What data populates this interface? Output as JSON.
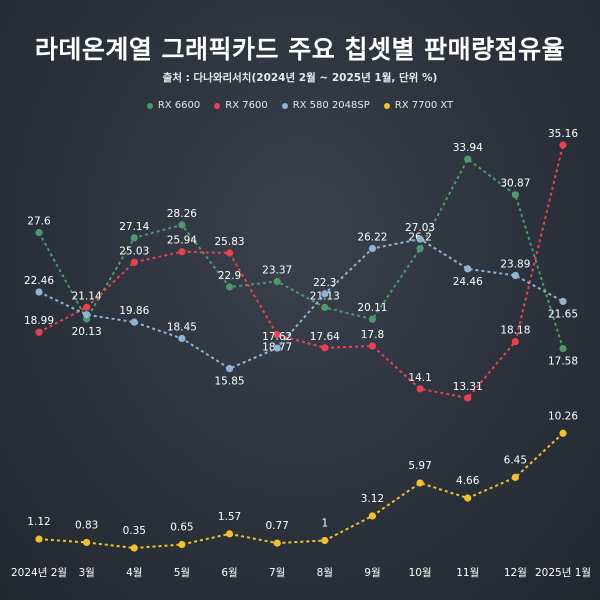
{
  "title": "라데온계열 그래픽카드 주요 칩셋별 판매량점유율",
  "subtitle": "출처 : 다나와리서치(2024년 2월 ~ 2025년 1월, 단위 %)",
  "chart_data": {
    "type": "line",
    "title": "라데온계열 그래픽카드 주요 칩셋별 판매량점유율",
    "subtitle": "출처 : 다나와리서치(2024년 2월 ~ 2025년 1월, 단위 %)",
    "categories": [
      "2024년 2월",
      "3월",
      "4월",
      "5월",
      "6월",
      "7월",
      "8월",
      "9월",
      "10월",
      "11월",
      "12월",
      "2025년 1월"
    ],
    "legend_position": "top",
    "grid": false,
    "series": [
      {
        "name": "RX 6600",
        "color": "#4c9a6a",
        "values": [
          27.6,
          20.13,
          27.14,
          28.26,
          22.9,
          23.37,
          21.13,
          20.11,
          26.2,
          33.94,
          30.87,
          17.58
        ],
        "labels": [
          "27.6",
          "20.13",
          "27.14",
          "28.26",
          "22.9",
          "23.37",
          "21.13",
          "20.11",
          "26.2",
          "33.94",
          "30.87",
          "17.58"
        ]
      },
      {
        "name": "RX 7600",
        "color": "#e8414f",
        "values": [
          18.99,
          21.14,
          25.03,
          25.94,
          25.83,
          18.77,
          17.64,
          17.8,
          14.1,
          13.31,
          18.18,
          35.16
        ],
        "labels": [
          "18.99",
          "21.14",
          "25.03",
          "25.94",
          "25.83",
          "18.77",
          "17.64",
          "17.8",
          "14.1",
          "13.31",
          "18.18",
          "35.16"
        ]
      },
      {
        "name": "RX 580 2048SP",
        "color": "#8fb4d6",
        "values": [
          22.46,
          20.5,
          19.86,
          18.45,
          15.85,
          17.62,
          22.3,
          26.22,
          27.03,
          24.46,
          23.89,
          21.65
        ],
        "labels": [
          "22.46",
          "",
          "19.86",
          "18.45",
          "15.85",
          "17.62",
          "22.3",
          "26.22",
          "27.03",
          "24.46",
          "23.89",
          "21.65"
        ]
      },
      {
        "name": "RX 7700 XT",
        "color": "#f2c12e",
        "values": [
          1.12,
          0.83,
          0.35,
          0.65,
          1.57,
          0.77,
          1,
          3.12,
          5.97,
          4.66,
          6.45,
          10.26
        ],
        "labels": [
          "1.12",
          "0.83",
          "0.35",
          "0.65",
          "1.57",
          "0.77",
          "1",
          "3.12",
          "5.97",
          "4.66",
          "6.45",
          "10.26"
        ]
      }
    ]
  }
}
